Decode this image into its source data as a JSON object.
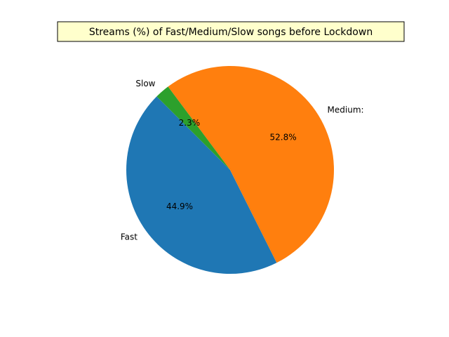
{
  "chart_data": {
    "type": "pie",
    "title": "Streams (%) of Fast/Medium/Slow songs before Lockdown",
    "categories": [
      "Fast",
      "Medium:",
      "Slow"
    ],
    "values": [
      44.9,
      52.8,
      2.3
    ],
    "value_labels": [
      "44.9%",
      "52.8%",
      "2.3%"
    ],
    "colors": [
      "#1f77b4",
      "#ff7f0e",
      "#2ca02c"
    ],
    "start_angle_deg": 135,
    "direction": "counterclockwise",
    "legend": "none",
    "grid": false,
    "title_box": {
      "facecolor": "#ffffcc",
      "edgecolor": "#000000"
    }
  }
}
